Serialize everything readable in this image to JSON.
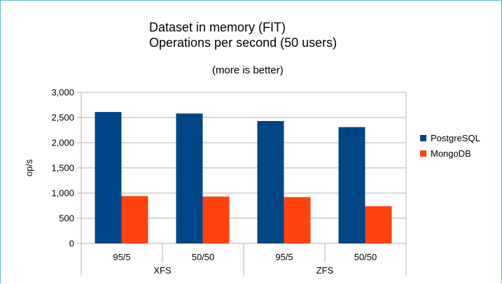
{
  "chart_data": {
    "type": "bar",
    "title_line1": "Dataset in memory (FIT)",
    "title_line2": "Operations per second (50 users)",
    "subtitle": "(more is better)",
    "ylabel": "op/s",
    "xlabel": "",
    "ylim": [
      0,
      3000
    ],
    "y_ticks": [
      "0",
      "500",
      "1,000",
      "1,500",
      "2,000",
      "2,500",
      "3,000"
    ],
    "y_tick_values": [
      0,
      500,
      1000,
      1500,
      2000,
      2500,
      3000
    ],
    "grid": true,
    "legend_position": "right",
    "categories": [
      "95/5",
      "50/50",
      "95/5",
      "50/50"
    ],
    "groups": [
      {
        "label": "XFS",
        "span": 2
      },
      {
        "label": "ZFS",
        "span": 2
      }
    ],
    "series": [
      {
        "name": "PostgreSQL",
        "color": "#004586",
        "values": [
          2610,
          2580,
          2430,
          2310
        ]
      },
      {
        "name": "MongoDB",
        "color": "#ff420e",
        "values": [
          940,
          930,
          920,
          740
        ]
      }
    ]
  }
}
